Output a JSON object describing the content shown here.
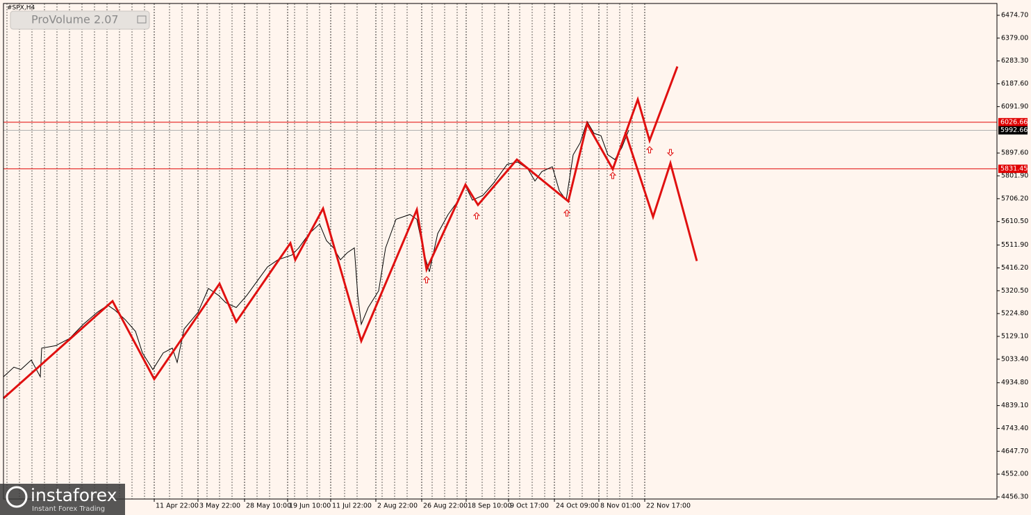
{
  "chart_data": {
    "type": "line",
    "symbol": "#SPX,H4",
    "indicator": "ProVolume 2.07",
    "brand": "instaforex",
    "brand_tagline": "Instant Forex Trading",
    "xlim": [
      0,
      1430
    ],
    "ylim": [
      4447.6,
      6524.2
    ],
    "yticks": [
      {
        "value": 6474.7,
        "label": "6474.70"
      },
      {
        "value": 6379,
        "label": "6379.00"
      },
      {
        "value": 6283.3,
        "label": "6283.30"
      },
      {
        "value": 6187.6,
        "label": "6187.60"
      },
      {
        "value": 6091.9,
        "label": "6091.90"
      },
      {
        "value": 5897.6,
        "label": "5897.60"
      },
      {
        "value": 5801.9,
        "label": "5801.90"
      },
      {
        "value": 5706.2,
        "label": "5706.20"
      },
      {
        "value": 5610.5,
        "label": "5610.50"
      },
      {
        "value": 5511.9,
        "label": "5511.90"
      },
      {
        "value": 5416.2,
        "label": "5416.20"
      },
      {
        "value": 5320.5,
        "label": "5320.50"
      },
      {
        "value": 5224.8,
        "label": "5224.80"
      },
      {
        "value": 5129.1,
        "label": "5129.10"
      },
      {
        "value": 5033.4,
        "label": "5033.40"
      },
      {
        "value": 4934.8,
        "label": "4934.80"
      },
      {
        "value": 4839.1,
        "label": "4839.10"
      },
      {
        "value": 4743.4,
        "label": "4743.40"
      },
      {
        "value": 4647.7,
        "label": "4647.70"
      },
      {
        "value": 4552,
        "label": "4552.00"
      },
      {
        "value": 4456.3,
        "label": "4456.30"
      }
    ],
    "xticks": [
      {
        "value": 217,
        "label": "11 Apr 22:00"
      },
      {
        "value": 280,
        "label": "3 May 22:00"
      },
      {
        "value": 347,
        "label": "28 May 10:00"
      },
      {
        "value": 409,
        "label": "19 Jun 10:00"
      },
      {
        "value": 471,
        "label": "11 Jul 22:00"
      },
      {
        "value": 536,
        "label": "2 Aug 22:00"
      },
      {
        "value": 602,
        "label": "26 Aug 22:00"
      },
      {
        "value": 666,
        "label": "18 Sep 10:00"
      },
      {
        "value": 727,
        "label": "9 Oct 17:00"
      },
      {
        "value": 793,
        "label": "24 Oct 09:00"
      },
      {
        "value": 857,
        "label": "8 Nov 01:00"
      },
      {
        "value": 923,
        "label": "22 Nov 17:00"
      }
    ],
    "levels": [
      {
        "value": 6026.66,
        "color": "#e00000"
      },
      {
        "value": 5831.45,
        "color": "#e00000"
      }
    ],
    "current_price": 5992.66,
    "series": [
      {
        "color": "#000000",
        "width": 1,
        "x": [
          0,
          15,
          25,
          40,
          53,
          55,
          75,
          95,
          115,
          135,
          150,
          160,
          175,
          190,
          200,
          215,
          230,
          243,
          250,
          260,
          280,
          295,
          310,
          320,
          335,
          350,
          365,
          380,
          395,
          415,
          425,
          440,
          455,
          465,
          475,
          485,
          495,
          505,
          510,
          515,
          525,
          540,
          550,
          565,
          585,
          595,
          605,
          613,
          625,
          640,
          655,
          665,
          675,
          690,
          705,
          725,
          740,
          755,
          765,
          775,
          790,
          800,
          810,
          820,
          830,
          840,
          850,
          860,
          870,
          880,
          890,
          900
        ],
        "values": [
          4960,
          5000,
          4990,
          5030,
          4960,
          5080,
          5090,
          5120,
          5180,
          5230,
          5260,
          5240,
          5200,
          5150,
          5060,
          4990,
          5060,
          5080,
          5020,
          5160,
          5230,
          5330,
          5300,
          5270,
          5250,
          5300,
          5360,
          5420,
          5450,
          5470,
          5500,
          5560,
          5600,
          5530,
          5500,
          5450,
          5480,
          5500,
          5300,
          5180,
          5250,
          5320,
          5500,
          5620,
          5640,
          5620,
          5480,
          5400,
          5560,
          5640,
          5700,
          5760,
          5700,
          5720,
          5770,
          5850,
          5860,
          5830,
          5780,
          5820,
          5840,
          5740,
          5700,
          5890,
          5940,
          6030,
          5980,
          5970,
          5890,
          5870,
          5920,
          5992.66
        ]
      },
      {
        "color": "#e01010",
        "width": 3,
        "x": [
          0,
          157,
          217,
          311,
          335,
          413,
          420,
          460,
          515,
          595,
          609,
          665,
          683,
          739,
          813,
          840,
          877,
          913,
          930,
          970
        ],
        "values": [
          4870,
          5277,
          4950,
          5350,
          5190,
          5520,
          5450,
          5665,
          5110,
          5660,
          5410,
          5765,
          5680,
          5870,
          5695,
          6020,
          5830,
          6122,
          5950,
          6260
        ]
      },
      {
        "color": "#e01010",
        "width": 3,
        "x": [
          895,
          935,
          960,
          998
        ],
        "values": [
          5985,
          5630,
          5855,
          5445
        ]
      }
    ]
  }
}
